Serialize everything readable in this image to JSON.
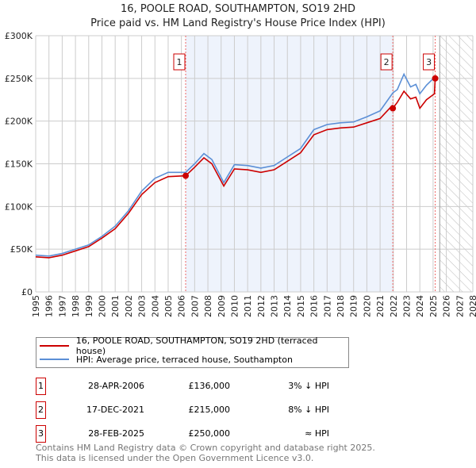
{
  "chart_data": {
    "type": "line",
    "title": "16, POOLE ROAD, SOUTHAMPTON, SO19 2HD",
    "subtitle": "Price paid vs. HM Land Registry's House Price Index (HPI)",
    "xlim": [
      1995,
      2028
    ],
    "ylim": [
      0,
      300000
    ],
    "x_ticks": [
      "1995",
      "1996",
      "1997",
      "1998",
      "1999",
      "2000",
      "2001",
      "2002",
      "2003",
      "2004",
      "2005",
      "2006",
      "2007",
      "2008",
      "2009",
      "2010",
      "2011",
      "2012",
      "2013",
      "2014",
      "2015",
      "2016",
      "2017",
      "2018",
      "2019",
      "2020",
      "2021",
      "2022",
      "2023",
      "2024",
      "2025",
      "2026",
      "2027",
      "2028"
    ],
    "y_ticks": [
      {
        "v": 0,
        "label": "£0"
      },
      {
        "v": 50000,
        "label": "£50K"
      },
      {
        "v": 100000,
        "label": "£100K"
      },
      {
        "v": 150000,
        "label": "£150K"
      },
      {
        "v": 200000,
        "label": "£200K"
      },
      {
        "v": 250000,
        "label": "£250K"
      },
      {
        "v": 300000,
        "label": "£300K"
      }
    ],
    "grid": true,
    "series": [
      {
        "name": "16, POOLE ROAD, SOUTHAMPTON, SO19 2HD (terraced house)",
        "color": "#cc0000",
        "x": [
          1995,
          1996,
          1997,
          1998,
          1999,
          2000,
          2001,
          2002,
          2003,
          2004,
          2005,
          2006.32,
          2007,
          2007.7,
          2008.3,
          2009.2,
          2010,
          2011,
          2012,
          2013,
          2014,
          2015,
          2016,
          2017,
          2018,
          2019,
          2020,
          2021,
          2021.9,
          2021.96,
          2022.3,
          2022.8,
          2023.3,
          2023.7,
          2024,
          2024.5,
          2025.1,
          2025.16
        ],
        "y": [
          41000,
          40000,
          43000,
          48000,
          53000,
          63000,
          74000,
          92000,
          114000,
          128000,
          135000,
          136000,
          146000,
          157000,
          150000,
          124000,
          144000,
          143000,
          140000,
          143000,
          153000,
          163000,
          184000,
          190000,
          192000,
          193000,
          198000,
          203000,
          218000,
          215000,
          222000,
          235000,
          226000,
          228000,
          215000,
          225000,
          232000,
          250000
        ]
      },
      {
        "name": "HPI: Average price, terraced house, Southampton",
        "color": "#5b8fd6",
        "x": [
          1995,
          1996,
          1997,
          1998,
          1999,
          2000,
          2001,
          2002,
          2003,
          2004,
          2005,
          2006.32,
          2007,
          2007.7,
          2008.3,
          2009.2,
          2010,
          2011,
          2012,
          2013,
          2014,
          2015,
          2016,
          2017,
          2018,
          2019,
          2020,
          2021,
          2021.96,
          2022.3,
          2022.8,
          2023.3,
          2023.7,
          2024,
          2024.5,
          2025.16
        ],
        "y": [
          43000,
          42000,
          45000,
          50000,
          55000,
          65000,
          77000,
          95000,
          118000,
          133000,
          140000,
          140000,
          150000,
          162000,
          155000,
          128000,
          149000,
          148000,
          145000,
          148000,
          158000,
          168000,
          190000,
          196000,
          198000,
          199000,
          205000,
          212000,
          233000,
          237000,
          255000,
          240000,
          243000,
          232000,
          242000,
          252000
        ]
      }
    ],
    "sales": [
      {
        "n": "1",
        "x": 2006.32,
        "y": 136000,
        "date": "28-APR-2006",
        "price": "£136,000",
        "rel": "3% ↓ HPI"
      },
      {
        "n": "2",
        "x": 2021.96,
        "y": 215000,
        "date": "17-DEC-2021",
        "price": "£215,000",
        "rel": "8% ↓ HPI"
      },
      {
        "n": "3",
        "x": 2025.16,
        "y": 250000,
        "date": "28-FEB-2025",
        "price": "£250,000",
        "rel": "≈ HPI"
      }
    ],
    "shaded_range": [
      2006.32,
      2021.96
    ],
    "future_hatch_from": 2025.5,
    "legend_position": "below"
  },
  "footer": [
    "Contains HM Land Registry data © Crown copyright and database right 2025.",
    "This data is licensed under the Open Government Licence v3.0."
  ]
}
